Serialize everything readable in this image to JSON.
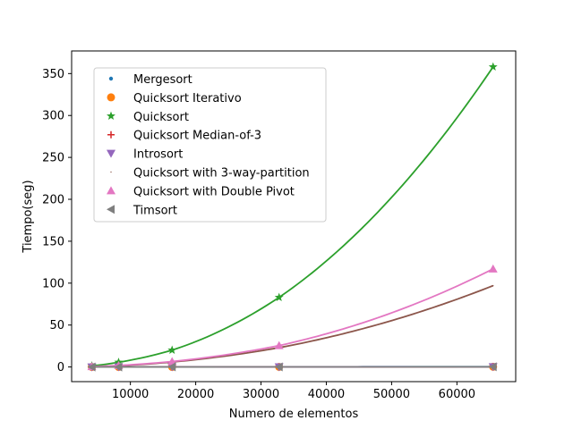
{
  "chart_data": {
    "type": "line",
    "title": "",
    "xlabel": "Numero de elementos",
    "ylabel": "Tiempo(seg)",
    "xlim": [
      1000,
      69000
    ],
    "ylim": [
      -17.5,
      377
    ],
    "xticks": [
      10000,
      20000,
      30000,
      40000,
      50000,
      60000
    ],
    "yticks": [
      0,
      50,
      100,
      150,
      200,
      250,
      300,
      350
    ],
    "grid": false,
    "legend_position": "top-left",
    "x": [
      4096,
      8192,
      16384,
      32768,
      65536
    ],
    "series": [
      {
        "name": "Mergesort",
        "marker": "point",
        "color": "#1f77b4",
        "values": [
          0.02,
          0.04,
          0.09,
          0.19,
          0.4
        ],
        "curve": [
          0.02,
          0.04,
          0.09,
          0.19,
          0.4
        ]
      },
      {
        "name": "Quicksort Iterativo",
        "marker": "circle",
        "color": "#ff7f0e",
        "values": [
          0.01,
          0.03,
          0.06,
          0.12,
          0.25
        ],
        "curve": [
          0.01,
          0.03,
          0.06,
          0.12,
          0.25
        ]
      },
      {
        "name": "Quicksort",
        "marker": "star",
        "color": "#2ca02c",
        "values": [
          1.4,
          5.6,
          20.1,
          83.0,
          358.0
        ],
        "curve": [
          1.4,
          5.6,
          20.1,
          83.0,
          358.0
        ]
      },
      {
        "name": "Quicksort Median-of-3",
        "marker": "plus",
        "color": "#d62728",
        "values": [
          0.01,
          0.02,
          0.05,
          0.1,
          0.2
        ],
        "curve": [
          0.01,
          0.02,
          0.05,
          0.1,
          0.2
        ]
      },
      {
        "name": "Introsort",
        "marker": "triangle-down",
        "color": "#9467bd",
        "values": [
          0.01,
          0.03,
          0.06,
          0.13,
          0.27
        ],
        "curve": [
          0.01,
          0.03,
          0.06,
          0.13,
          0.27
        ]
      },
      {
        "name": "Quicksort with 3-way-partition",
        "marker": "pixel",
        "color": "#8c564b",
        "values": [
          0.4,
          1.5,
          5.9,
          23.0,
          97.0
        ],
        "curve": [
          0.4,
          1.5,
          5.9,
          23.0,
          97.0
        ]
      },
      {
        "name": "Quicksort with Double Pivot",
        "marker": "triangle-up",
        "color": "#e377c2",
        "values": [
          0.5,
          1.8,
          6.5,
          25.5,
          117.0
        ],
        "curve": [
          0.5,
          1.8,
          6.5,
          25.5,
          117.0
        ]
      },
      {
        "name": "Timsort",
        "marker": "triangle-left",
        "color": "#7f7f7f",
        "values": [
          0.01,
          0.02,
          0.04,
          0.08,
          0.16
        ],
        "curve": [
          0.01,
          0.02,
          0.04,
          0.08,
          0.16
        ]
      }
    ]
  }
}
